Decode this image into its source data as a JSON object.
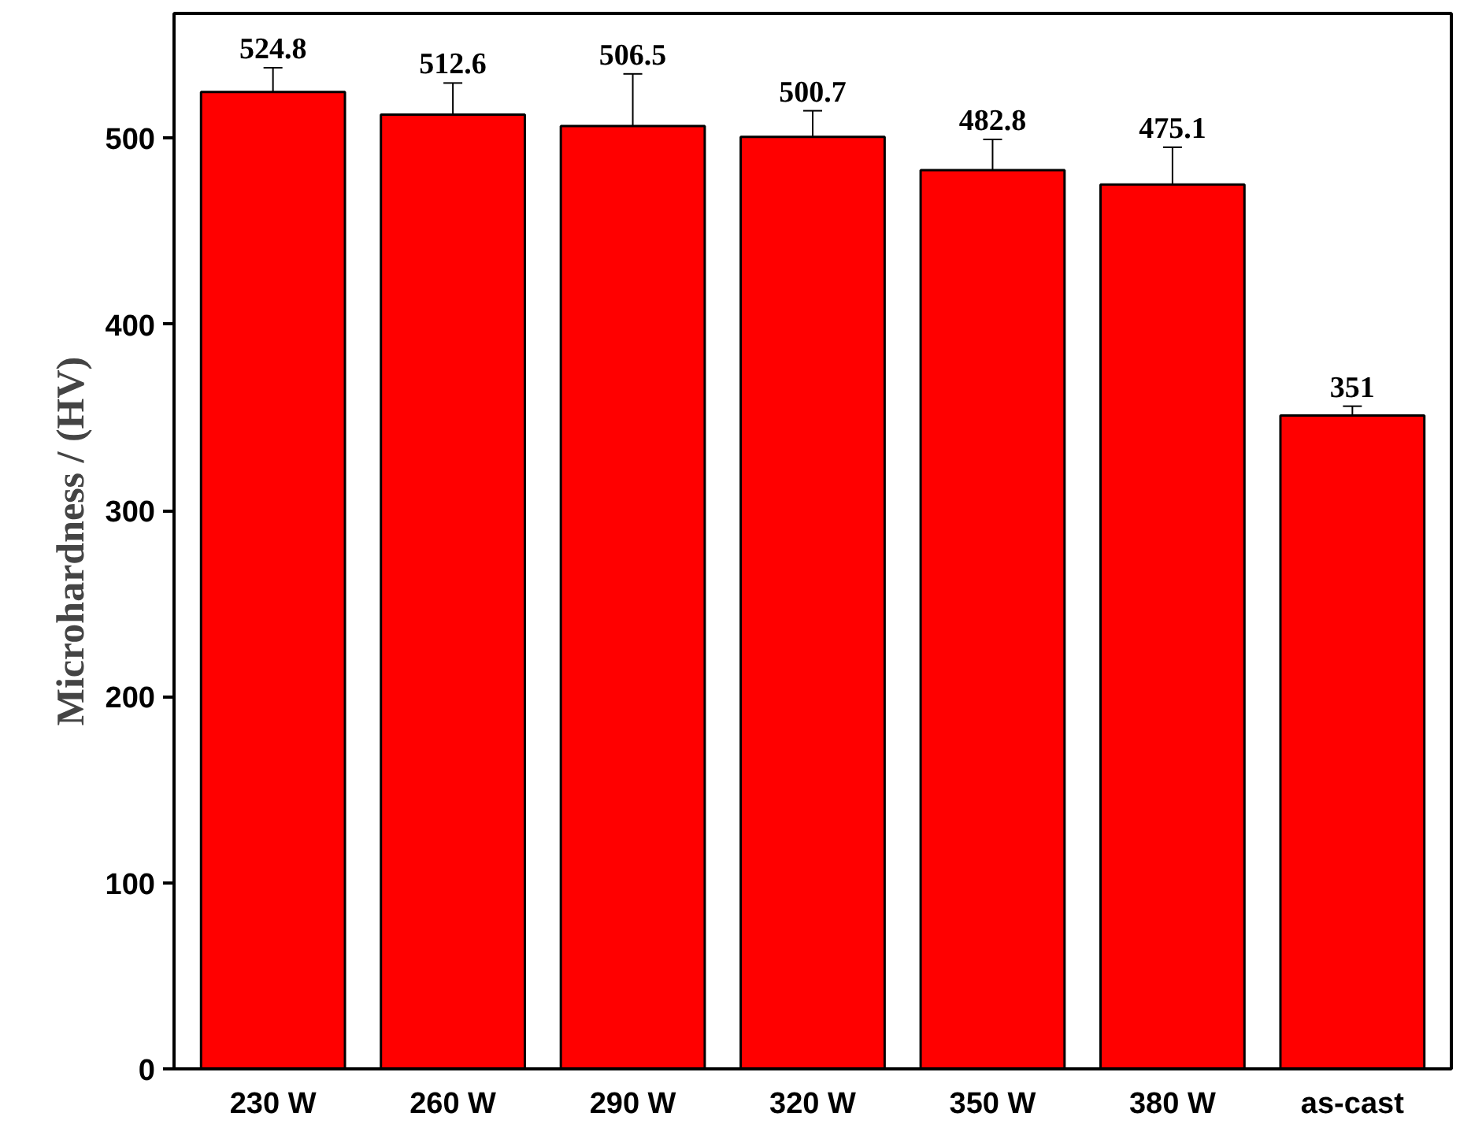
{
  "chart_data": {
    "type": "bar",
    "ylabel": "Microhardness / (HV)",
    "categories": [
      "230 W",
      "260 W",
      "290 W",
      "320 W",
      "350 W",
      "380 W",
      "as-cast"
    ],
    "values": [
      524.8,
      512.6,
      506.5,
      500.7,
      482.8,
      475.1,
      351
    ],
    "value_labels": [
      "524.8",
      "512.6",
      "506.5",
      "500.7",
      "482.8",
      "475.1",
      "351"
    ],
    "errors": [
      13,
      17,
      28,
      14,
      16.5,
      20,
      5
    ],
    "color": "#ff0000",
    "ylim": [
      0,
      567
    ],
    "yticks": [
      0,
      100,
      200,
      300,
      400,
      500
    ],
    "grid": false
  }
}
